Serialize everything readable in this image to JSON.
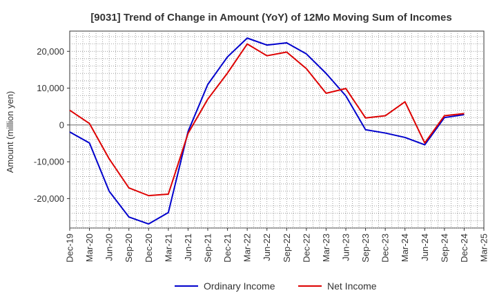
{
  "chart_data": {
    "type": "line",
    "title": "[9031]  Trend of Change in Amount (YoY) of 12Mo Moving Sum of Incomes",
    "xlabel": "",
    "ylabel": "Amount (million yen)",
    "ylim": [
      -28000,
      25500
    ],
    "yticks": [
      -20000,
      -10000,
      0,
      10000,
      20000
    ],
    "ytick_labels": [
      "-20,000",
      "-10,000",
      "0",
      "10,000",
      "20,000"
    ],
    "categories": [
      "Dec-19",
      "Mar-20",
      "Jun-20",
      "Sep-20",
      "Dec-20",
      "Mar-21",
      "Jun-21",
      "Sep-21",
      "Dec-21",
      "Mar-22",
      "Jun-22",
      "Sep-22",
      "Dec-22",
      "Mar-23",
      "Jun-23",
      "Sep-23",
      "Dec-23",
      "Mar-24",
      "Jun-24",
      "Sep-24",
      "Dec-24",
      "Mar-25"
    ],
    "grid": true,
    "legend_position": "bottom",
    "series": [
      {
        "name": "Ordinary Income",
        "color": "#0000cc",
        "values": [
          -1900,
          -4900,
          -18000,
          -25000,
          -26900,
          -23800,
          -1800,
          11000,
          18500,
          23600,
          21700,
          22300,
          19300,
          14000,
          7900,
          -1300,
          -2200,
          -3400,
          -5400,
          2000,
          2800,
          null
        ]
      },
      {
        "name": "Net Income",
        "color": "#dd0000",
        "values": [
          4000,
          400,
          -9200,
          -17100,
          -19200,
          -18800,
          -2300,
          7000,
          14100,
          22000,
          18800,
          19800,
          15300,
          8600,
          9900,
          1900,
          2500,
          6300,
          -4900,
          2500,
          3100,
          null
        ]
      }
    ]
  }
}
